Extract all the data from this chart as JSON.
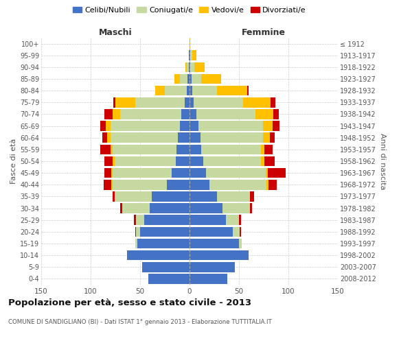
{
  "age_groups": [
    "0-4",
    "5-9",
    "10-14",
    "15-19",
    "20-24",
    "25-29",
    "30-34",
    "35-39",
    "40-44",
    "45-49",
    "50-54",
    "55-59",
    "60-64",
    "65-69",
    "70-74",
    "75-79",
    "80-84",
    "85-89",
    "90-94",
    "95-99",
    "100+"
  ],
  "birth_years": [
    "2008-2012",
    "2003-2007",
    "1998-2002",
    "1993-1997",
    "1988-1992",
    "1983-1987",
    "1978-1982",
    "1973-1977",
    "1968-1972",
    "1963-1967",
    "1958-1962",
    "1953-1957",
    "1948-1952",
    "1943-1947",
    "1938-1942",
    "1933-1937",
    "1928-1932",
    "1923-1927",
    "1918-1922",
    "1913-1917",
    "≤ 1912"
  ],
  "males_celibi": [
    42,
    48,
    63,
    53,
    50,
    46,
    40,
    38,
    23,
    18,
    14,
    13,
    12,
    10,
    8,
    5,
    3,
    2,
    1,
    1,
    0
  ],
  "males_coniugati": [
    0,
    0,
    0,
    2,
    4,
    8,
    28,
    38,
    55,
    60,
    62,
    65,
    68,
    70,
    62,
    50,
    22,
    8,
    2,
    0,
    0
  ],
  "males_vedovi": [
    0,
    0,
    0,
    0,
    0,
    0,
    0,
    0,
    1,
    1,
    2,
    2,
    3,
    5,
    8,
    20,
    10,
    5,
    1,
    0,
    0
  ],
  "males_divorziati": [
    0,
    0,
    0,
    0,
    1,
    2,
    2,
    2,
    8,
    7,
    8,
    10,
    5,
    5,
    8,
    2,
    0,
    0,
    0,
    0,
    0
  ],
  "females_nubili": [
    38,
    46,
    60,
    50,
    44,
    37,
    33,
    28,
    20,
    17,
    14,
    12,
    11,
    9,
    7,
    4,
    3,
    2,
    1,
    1,
    0
  ],
  "females_coniugate": [
    0,
    0,
    0,
    3,
    7,
    13,
    28,
    33,
    58,
    60,
    58,
    60,
    63,
    65,
    60,
    50,
    25,
    10,
    4,
    2,
    0
  ],
  "females_vedove": [
    0,
    0,
    0,
    0,
    0,
    0,
    0,
    0,
    2,
    2,
    4,
    4,
    7,
    10,
    18,
    28,
    30,
    20,
    10,
    4,
    1
  ],
  "females_divorziate": [
    0,
    0,
    0,
    0,
    1,
    2,
    2,
    4,
    8,
    18,
    10,
    8,
    5,
    7,
    5,
    5,
    2,
    0,
    0,
    0,
    0
  ],
  "colors": {
    "celibi": "#4472C4",
    "coniugati": "#c5d9a0",
    "vedovi": "#ffc000",
    "divorziati": "#cc0000"
  },
  "xlim": 150,
  "title": "Popolazione per età, sesso e stato civile - 2013",
  "subtitle": "COMUNE DI SANDIGLIANO (BI) - Dati ISTAT 1° gennaio 2013 - Elaborazione TUTTITALIA.IT",
  "ylabel_left": "Fasce di età",
  "ylabel_right": "Anni di nascita",
  "label_maschi": "Maschi",
  "label_femmine": "Femmine",
  "legend_labels": [
    "Celibi/Nubili",
    "Coniugati/e",
    "Vedovi/e",
    "Divorziati/e"
  ],
  "bg_color": "#ffffff",
  "grid_color": "#cccccc",
  "xticks": [
    -150,
    -100,
    -50,
    0,
    50,
    100,
    150
  ]
}
